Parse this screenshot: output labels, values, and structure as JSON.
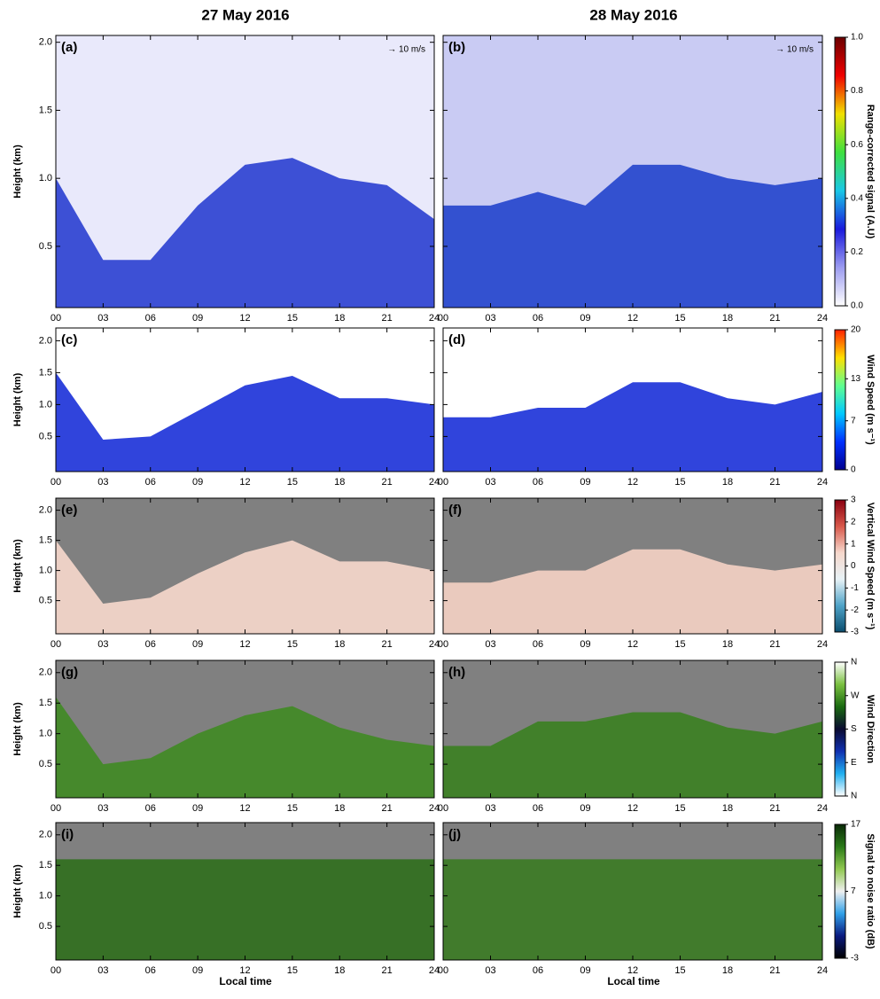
{
  "titles": [
    "27 May 2016",
    "28 May 2016"
  ],
  "shared_axes": {
    "xlabel": "Local time",
    "ylabel": "Height (km)",
    "xlim": [
      0,
      24
    ],
    "xticks": [
      {
        "value": 0,
        "label": "00"
      },
      {
        "value": 3,
        "label": "03"
      },
      {
        "value": 6,
        "label": "06"
      },
      {
        "value": 9,
        "label": "09"
      },
      12,
      15,
      18,
      21,
      24
    ],
    "yticks": [
      {
        "value": 0.5,
        "label": "0.5"
      },
      {
        "value": 1,
        "label": "1.0"
      },
      {
        "value": 1.5,
        "label": "1.5"
      },
      {
        "value": 2,
        "label": "2.0"
      }
    ]
  },
  "chart_data": [
    {
      "type": "heatmap",
      "label": "(a)",
      "annotation": "→ 10 m/s",
      "ylim": [
        0.05,
        2.05
      ],
      "background": "#e9e9fb",
      "color": "#2a3fd0",
      "x": [
        0,
        3,
        6,
        9,
        12,
        15,
        18,
        21,
        24
      ],
      "values": [
        1.0,
        0.4,
        0.4,
        0.8,
        1.1,
        1.15,
        1.0,
        0.95,
        0.7
      ]
    },
    {
      "type": "heatmap",
      "label": "(b)",
      "annotation": "→ 10 m/s",
      "ylim": [
        0.05,
        2.05
      ],
      "background": "#c9cbf3",
      "color": "#2244cc",
      "x": [
        0,
        3,
        6,
        9,
        12,
        15,
        18,
        21,
        24
      ],
      "values": [
        0.8,
        0.8,
        0.9,
        0.8,
        1.1,
        1.1,
        1.0,
        0.95,
        1.0
      ],
      "colorbar": {
        "label": "Range-corrected signal (A.U)",
        "colors": [
          "#ffffff",
          "#9c9cf0",
          "#1a1adc",
          "#19c8e6",
          "#3fe03f",
          "#f0e000",
          "#f00000",
          "#6a0000"
        ],
        "ticks": [
          {
            "value": 0,
            "label": "0.0"
          },
          0.2,
          0.4,
          0.6,
          0.8,
          {
            "value": 1,
            "label": "1.0"
          }
        ]
      }
    },
    {
      "type": "heatmap",
      "label": "(c)",
      "ylim": [
        -0.05,
        2.2
      ],
      "background": "#ffffff",
      "color": "#1a30d8",
      "x": [
        0,
        3,
        6,
        9,
        12,
        15,
        18,
        21,
        24
      ],
      "values": [
        1.5,
        0.45,
        0.5,
        0.9,
        1.3,
        1.45,
        1.1,
        1.1,
        1.0
      ]
    },
    {
      "type": "heatmap",
      "label": "(d)",
      "ylim": [
        -0.05,
        2.2
      ],
      "background": "#ffffff",
      "color": "#1a30d8",
      "x": [
        0,
        3,
        6,
        9,
        12,
        15,
        18,
        21,
        24
      ],
      "values": [
        0.8,
        0.8,
        0.95,
        0.95,
        1.35,
        1.35,
        1.1,
        1.0,
        1.2
      ],
      "colorbar": {
        "label": "Wind Speed (m s⁻¹)",
        "colors": [
          "#00008f",
          "#0030ff",
          "#00c8ff",
          "#60ff90",
          "#ffe000",
          "#ff2000"
        ],
        "ticks": [
          0,
          7,
          13,
          20
        ]
      }
    },
    {
      "type": "heatmap",
      "label": "(e)",
      "ylim": [
        -0.05,
        2.2
      ],
      "background": "#808080",
      "color": "#f7d8cc",
      "x": [
        0,
        3,
        6,
        9,
        12,
        15,
        18,
        21,
        24
      ],
      "values": [
        1.5,
        0.45,
        0.55,
        0.95,
        1.3,
        1.5,
        1.15,
        1.15,
        1.0
      ]
    },
    {
      "type": "heatmap",
      "label": "(f)",
      "ylim": [
        -0.05,
        2.2
      ],
      "background": "#808080",
      "color": "#f5d2c4",
      "x": [
        0,
        3,
        6,
        9,
        12,
        15,
        18,
        21,
        24
      ],
      "values": [
        0.8,
        0.8,
        1.0,
        1.0,
        1.35,
        1.35,
        1.1,
        1.0,
        1.1
      ],
      "colorbar": {
        "label": "Vertical Wind Speed (m s⁻¹)",
        "colors": [
          "#0a4d6e",
          "#4fa3c8",
          "#e8f2f6",
          "#f6d8cc",
          "#d8584a",
          "#8a0010"
        ],
        "ticks": [
          -3,
          -2,
          -1,
          0,
          1,
          2,
          3
        ]
      }
    },
    {
      "type": "heatmap",
      "label": "(g)",
      "ylim": [
        -0.05,
        2.2
      ],
      "background": "#808080",
      "color": "#3f8a22",
      "x": [
        0,
        3,
        6,
        9,
        12,
        15,
        18,
        21,
        24
      ],
      "values": [
        1.6,
        0.5,
        0.6,
        1.0,
        1.3,
        1.45,
        1.1,
        0.9,
        0.8
      ]
    },
    {
      "type": "heatmap",
      "label": "(h)",
      "ylim": [
        -0.05,
        2.2
      ],
      "background": "#808080",
      "color": "#3a8020",
      "x": [
        0,
        3,
        6,
        9,
        12,
        15,
        18,
        21,
        24
      ],
      "values": [
        0.8,
        0.8,
        1.2,
        1.2,
        1.35,
        1.35,
        1.1,
        1.0,
        1.2
      ],
      "colorbar": {
        "label": "Wind Direction",
        "colors": [
          "#ffffff",
          "#20b0f0",
          "#1030b0",
          "#0a0a30",
          "#1a6a10",
          "#7ac040",
          "#ffffff"
        ],
        "ticks": [
          {
            "value": 0,
            "label": "N"
          },
          {
            "value": 90,
            "label": "E"
          },
          {
            "value": 180,
            "label": "S"
          },
          {
            "value": 270,
            "label": "W"
          },
          {
            "value": 360,
            "label": "N"
          }
        ]
      }
    },
    {
      "type": "heatmap",
      "label": "(i)",
      "ylim": [
        -0.05,
        2.2
      ],
      "background": "#808080",
      "color": "#2f6e1c",
      "x": [
        0,
        3,
        6,
        9,
        12,
        15,
        18,
        21,
        24
      ],
      "values": [
        1.6,
        1.6,
        1.6,
        1.6,
        1.6,
        1.6,
        1.6,
        1.6,
        1.6
      ]
    },
    {
      "type": "heatmap",
      "label": "(j)",
      "ylim": [
        -0.05,
        2.2
      ],
      "background": "#808080",
      "color": "#3a7a22",
      "x": [
        0,
        3,
        6,
        9,
        12,
        15,
        18,
        21,
        24
      ],
      "values": [
        1.6,
        1.6,
        1.6,
        1.6,
        1.6,
        1.6,
        1.6,
        1.6,
        1.6
      ],
      "colorbar": {
        "label": "Signal to noise ratio (dB)",
        "colors": [
          "#000000",
          "#0a1a80",
          "#30a0e8",
          "#f0f0f0",
          "#90c850",
          "#2a7a18",
          "#0a2a08"
        ],
        "ticks": [
          -3,
          7,
          17
        ]
      }
    }
  ]
}
